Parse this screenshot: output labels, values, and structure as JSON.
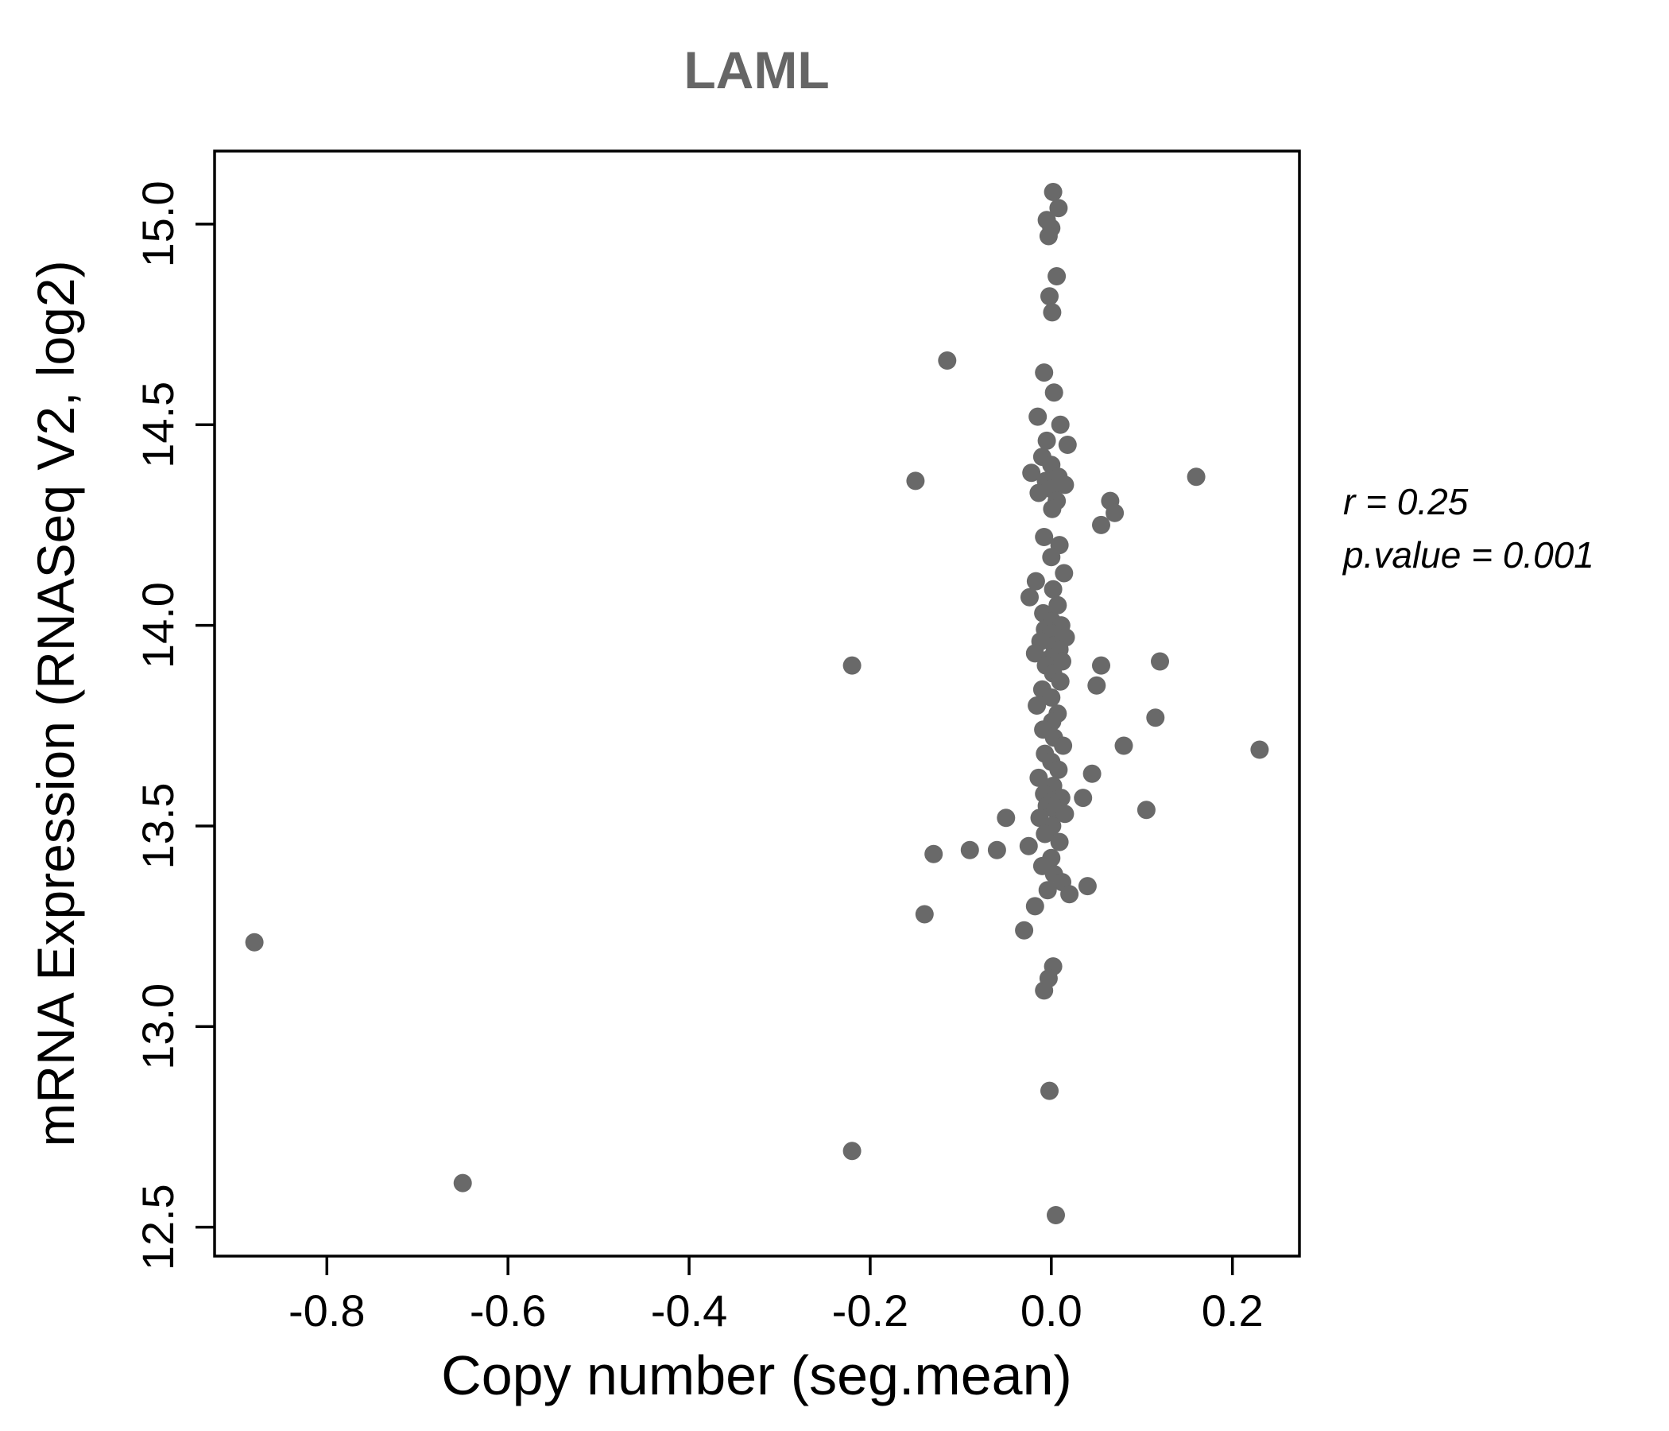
{
  "chart_data": {
    "type": "scatter",
    "title": "LAML",
    "xlabel": "Copy number (seg.mean)",
    "ylabel": "mRNA Expression (RNASeq V2, log2)",
    "xlim": [
      -0.924,
      0.274
    ],
    "ylim": [
      12.428,
      15.182
    ],
    "xticks": [
      -0.8,
      -0.6,
      -0.4,
      -0.2,
      0.0,
      0.2
    ],
    "yticks": [
      12.5,
      13.0,
      13.5,
      14.0,
      14.5,
      15.0
    ],
    "grid": false,
    "point_color": "#696969",
    "annotation": {
      "line1": "r = 0.25",
      "line2": "p.value = 0.001"
    },
    "points": [
      [
        -0.88,
        13.21
      ],
      [
        -0.65,
        12.61
      ],
      [
        -0.22,
        12.69
      ],
      [
        -0.22,
        13.9
      ],
      [
        -0.15,
        14.36
      ],
      [
        -0.115,
        14.66
      ],
      [
        -0.14,
        13.28
      ],
      [
        -0.13,
        13.43
      ],
      [
        -0.09,
        13.44
      ],
      [
        -0.06,
        13.44
      ],
      [
        -0.05,
        13.52
      ],
      [
        0.23,
        13.69
      ],
      [
        0.16,
        14.37
      ],
      [
        0.12,
        13.91
      ],
      [
        0.115,
        13.77
      ],
      [
        0.105,
        13.54
      ],
      [
        0.08,
        13.7
      ],
      [
        0.065,
        14.31
      ],
      [
        0.055,
        14.25
      ],
      [
        0.07,
        14.28
      ],
      [
        0.055,
        13.9
      ],
      [
        0.05,
        13.85
      ],
      [
        0.045,
        13.63
      ],
      [
        0.04,
        13.35
      ],
      [
        0.035,
        13.57
      ],
      [
        0.002,
        15.08
      ],
      [
        0.008,
        15.04
      ],
      [
        -0.005,
        15.01
      ],
      [
        0.0,
        14.99
      ],
      [
        -0.003,
        14.97
      ],
      [
        0.006,
        14.87
      ],
      [
        -0.002,
        14.82
      ],
      [
        0.001,
        14.78
      ],
      [
        -0.008,
        14.63
      ],
      [
        0.003,
        14.58
      ],
      [
        -0.015,
        14.52
      ],
      [
        0.01,
        14.5
      ],
      [
        -0.005,
        14.46
      ],
      [
        0.018,
        14.45
      ],
      [
        -0.01,
        14.42
      ],
      [
        0.0,
        14.4
      ],
      [
        -0.022,
        14.38
      ],
      [
        0.008,
        14.37
      ],
      [
        -0.006,
        14.36
      ],
      [
        0.015,
        14.35
      ],
      [
        0.0,
        14.34
      ],
      [
        -0.014,
        14.33
      ],
      [
        0.006,
        14.31
      ],
      [
        0.001,
        14.29
      ],
      [
        -0.008,
        14.22
      ],
      [
        0.009,
        14.2
      ],
      [
        0.0,
        14.17
      ],
      [
        0.014,
        14.13
      ],
      [
        -0.017,
        14.11
      ],
      [
        0.002,
        14.09
      ],
      [
        -0.024,
        14.07
      ],
      [
        0.007,
        14.05
      ],
      [
        -0.009,
        14.03
      ],
      [
        0.001,
        14.01
      ],
      [
        0.011,
        14.0
      ],
      [
        -0.007,
        13.99
      ],
      [
        0.0,
        13.98
      ],
      [
        0.016,
        13.97
      ],
      [
        -0.012,
        13.96
      ],
      [
        0.003,
        13.95
      ],
      [
        0.009,
        13.94
      ],
      [
        -0.018,
        13.93
      ],
      [
        0.0,
        13.92
      ],
      [
        0.012,
        13.91
      ],
      [
        -0.006,
        13.9
      ],
      [
        0.002,
        13.88
      ],
      [
        0.01,
        13.86
      ],
      [
        -0.01,
        13.84
      ],
      [
        0.0,
        13.82
      ],
      [
        -0.016,
        13.8
      ],
      [
        0.007,
        13.78
      ],
      [
        0.001,
        13.76
      ],
      [
        -0.009,
        13.74
      ],
      [
        0.003,
        13.72
      ],
      [
        0.013,
        13.7
      ],
      [
        -0.007,
        13.68
      ],
      [
        0.0,
        13.66
      ],
      [
        0.008,
        13.64
      ],
      [
        -0.014,
        13.62
      ],
      [
        0.002,
        13.6
      ],
      [
        -0.008,
        13.58
      ],
      [
        0.011,
        13.57
      ],
      [
        0.0,
        13.56
      ],
      [
        -0.005,
        13.55
      ],
      [
        0.004,
        13.54
      ],
      [
        0.015,
        13.53
      ],
      [
        -0.013,
        13.52
      ],
      [
        0.001,
        13.5
      ],
      [
        -0.007,
        13.48
      ],
      [
        0.009,
        13.46
      ],
      [
        -0.025,
        13.45
      ],
      [
        0.0,
        13.42
      ],
      [
        -0.01,
        13.4
      ],
      [
        0.003,
        13.38
      ],
      [
        0.012,
        13.36
      ],
      [
        -0.004,
        13.34
      ],
      [
        0.02,
        13.33
      ],
      [
        -0.018,
        13.3
      ],
      [
        -0.03,
        13.24
      ],
      [
        0.002,
        13.15
      ],
      [
        -0.003,
        13.12
      ],
      [
        -0.008,
        13.09
      ],
      [
        -0.002,
        12.84
      ],
      [
        0.005,
        12.53
      ]
    ]
  }
}
